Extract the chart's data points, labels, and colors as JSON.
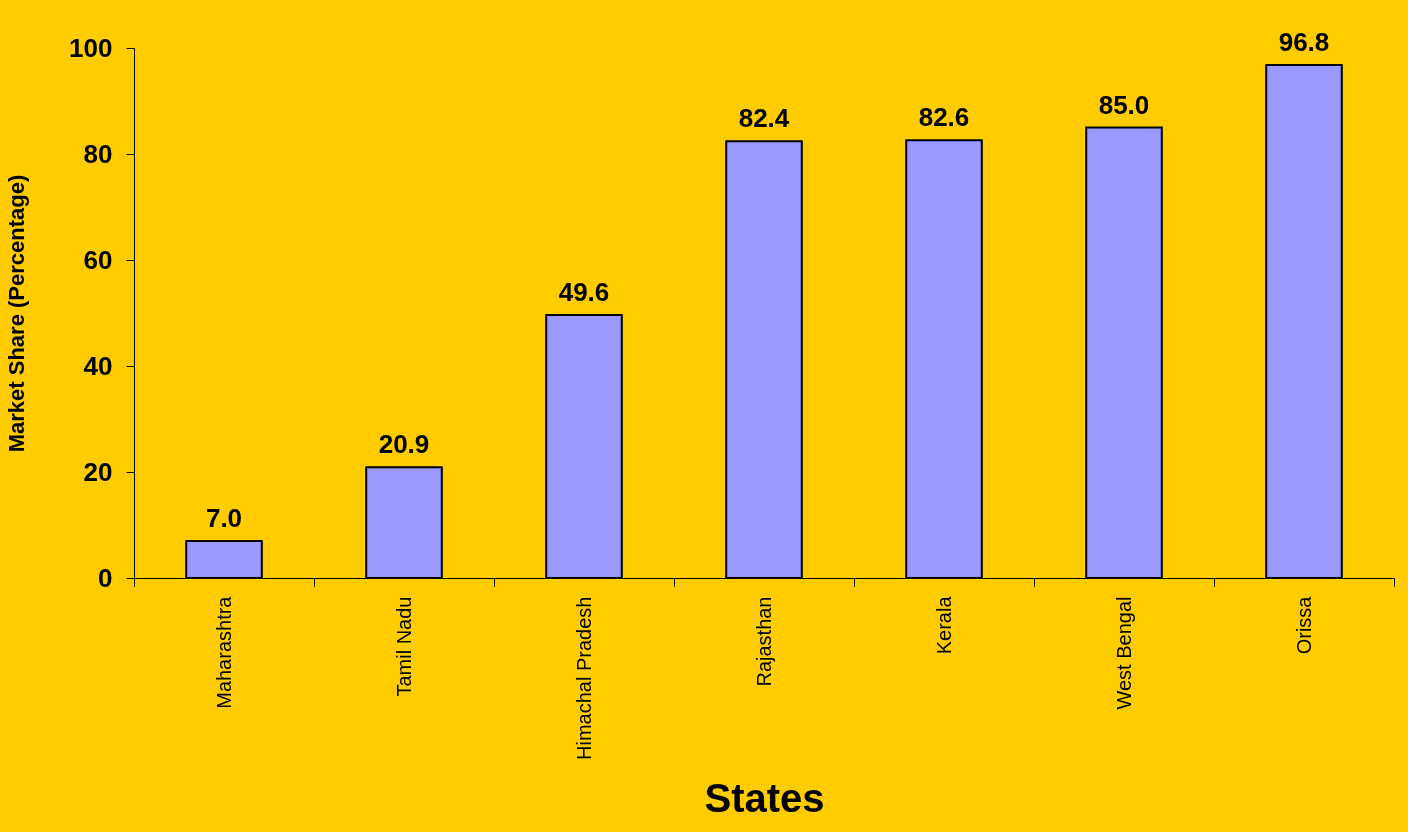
{
  "chart_data": {
    "type": "bar",
    "xlabel": "States",
    "ylabel": "Market Share (Percentage)",
    "categories": [
      "Maharashtra",
      "Tamil Nadu",
      "Himachal Pradesh",
      "Rajasthan",
      "Kerala",
      "West Bengal",
      "Orissa"
    ],
    "values": [
      7.0,
      20.9,
      49.6,
      82.4,
      82.6,
      85.0,
      96.8
    ],
    "value_labels": [
      "7.0",
      "20.9",
      "49.6",
      "82.4",
      "82.6",
      "85.0",
      "96.8"
    ],
    "color": "#9999ff",
    "ylim": [
      0,
      100
    ],
    "yticks": [
      0,
      20,
      40,
      60,
      80,
      100
    ],
    "grid": false
  }
}
